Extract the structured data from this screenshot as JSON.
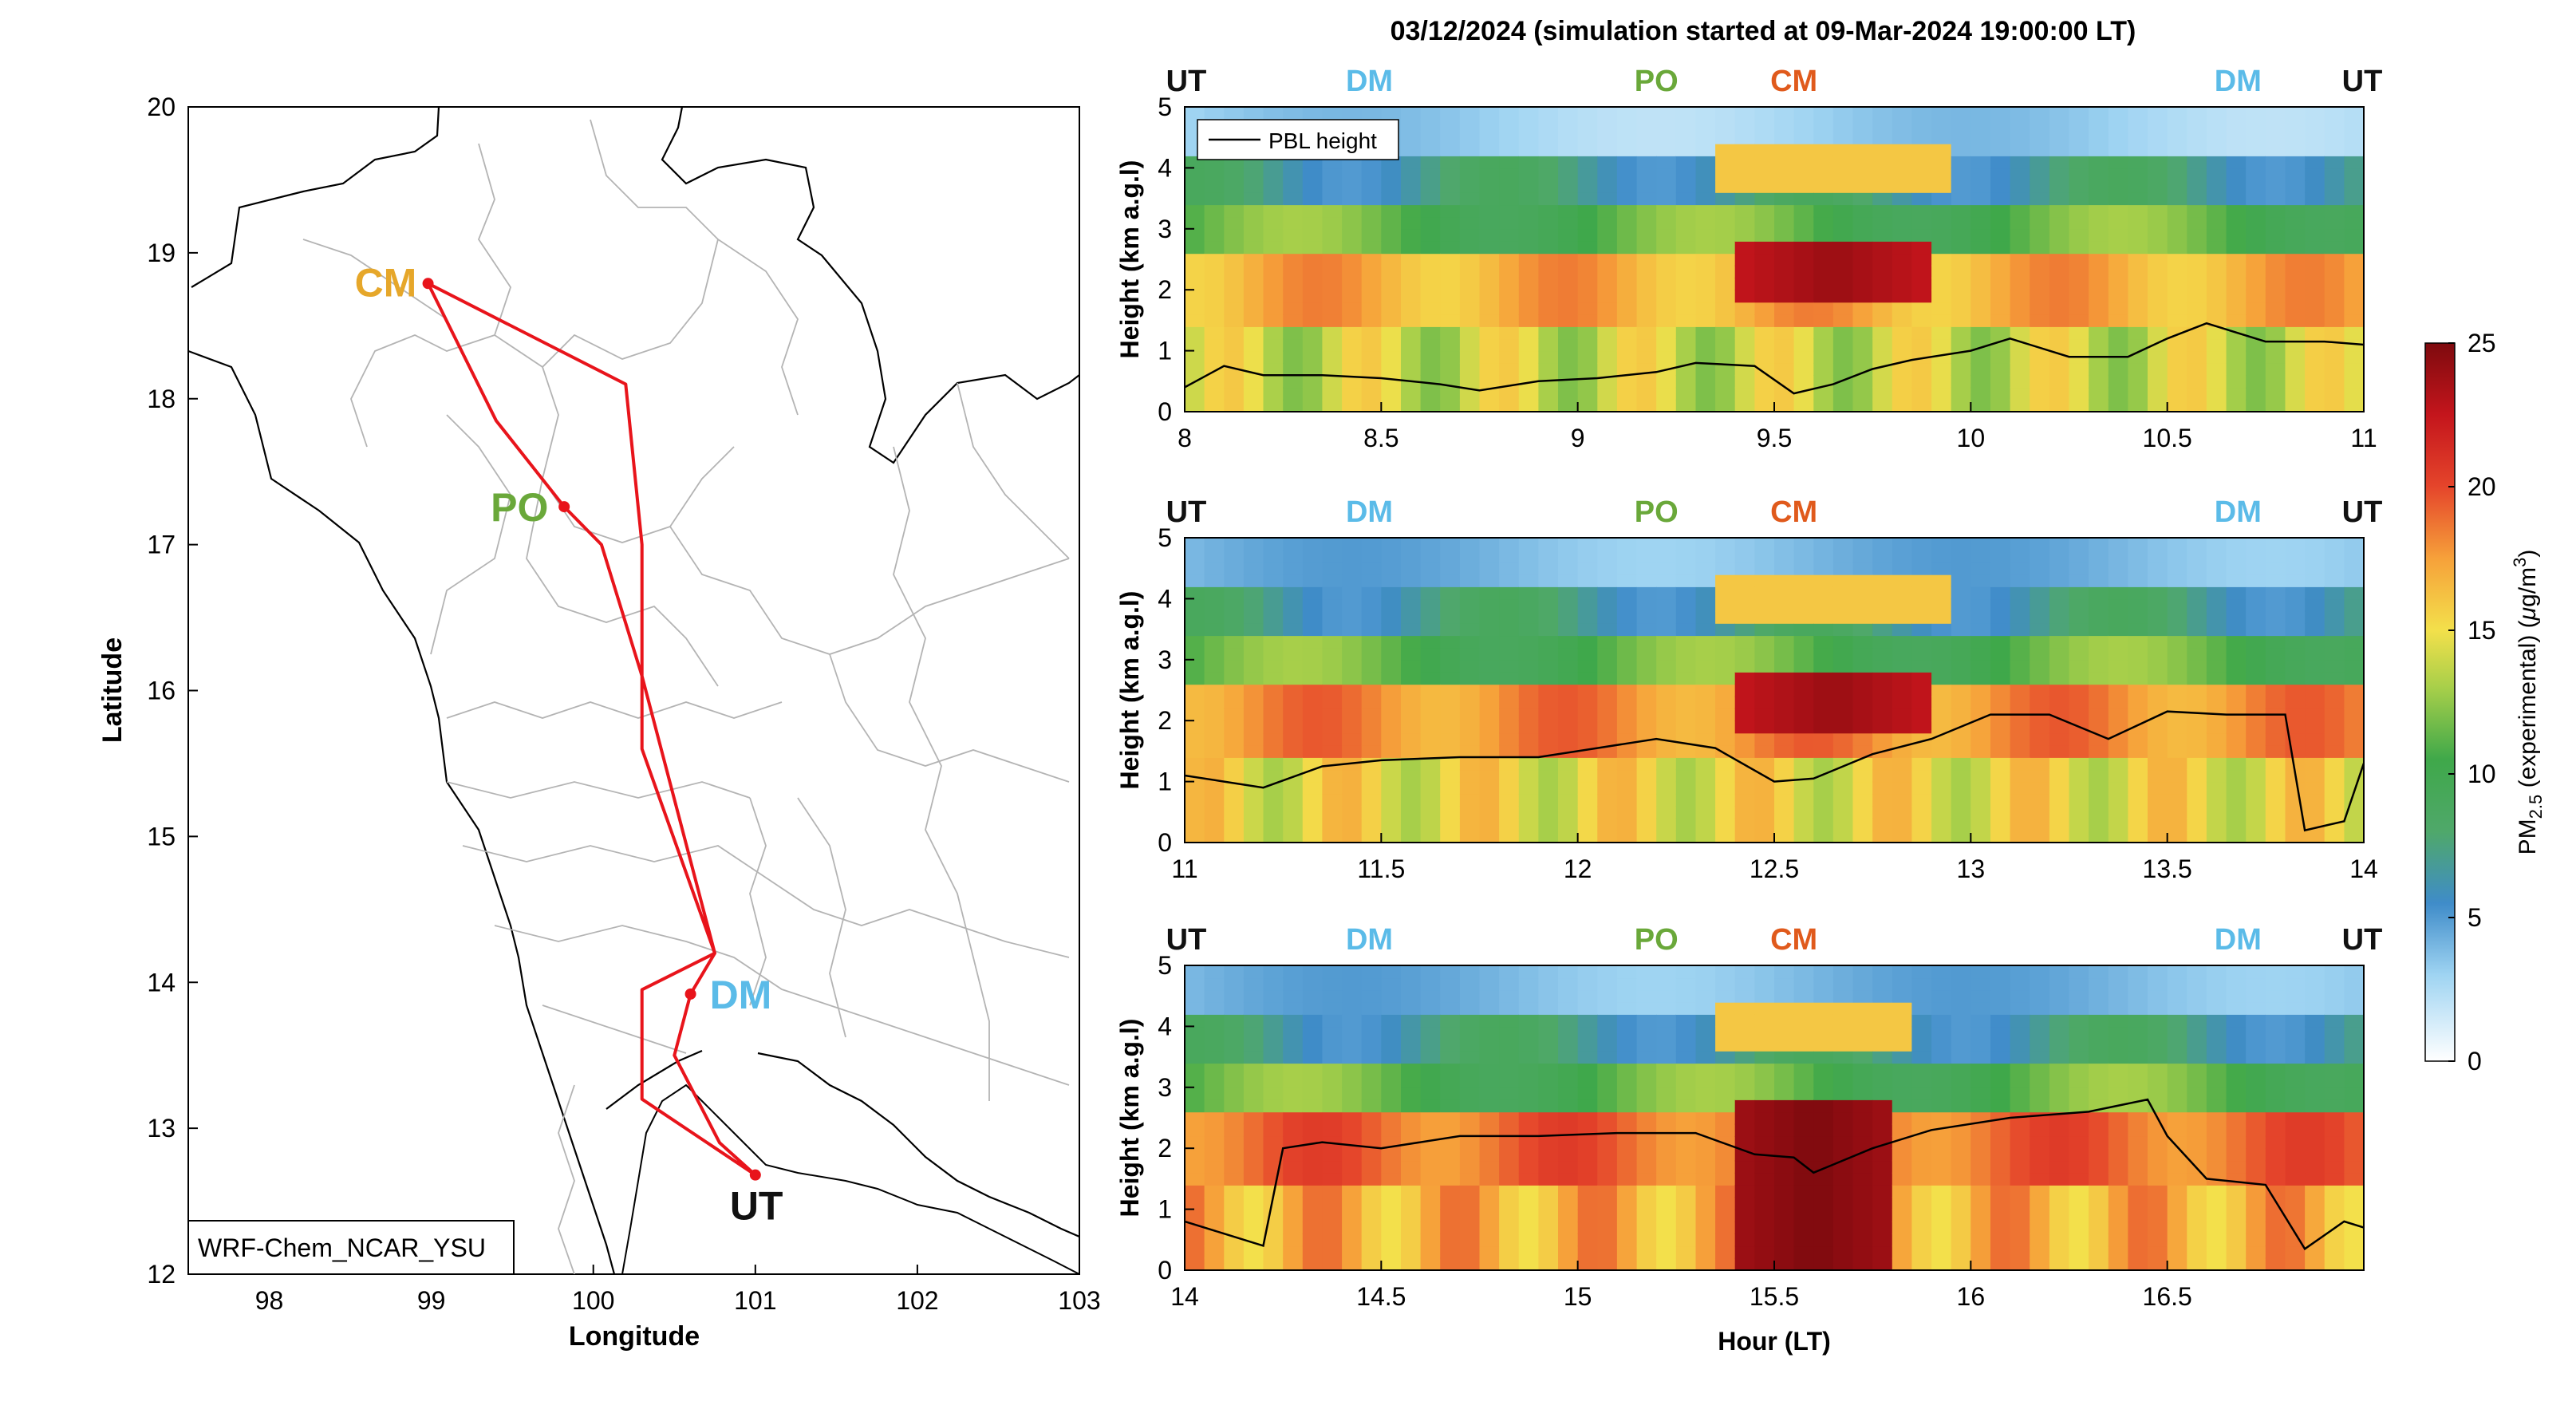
{
  "figure": {
    "title": "03/12/2024 (simulation started at 09-Mar-2024 19:00:00 LT)"
  },
  "map": {
    "xlabel": "Longitude",
    "ylabel": "Latitude",
    "xticks": [
      98,
      99,
      100,
      101,
      102,
      103
    ],
    "yticks": [
      12,
      13,
      14,
      15,
      16,
      17,
      18,
      19,
      20
    ],
    "xlim": [
      97.5,
      103
    ],
    "ylim": [
      12,
      20
    ],
    "model_label": "WRF-Chem_NCAR_YSU",
    "route_color": "#e8141b",
    "sites": [
      {
        "code": "CM",
        "lon": 98.98,
        "lat": 18.79,
        "color": "#e6a72a"
      },
      {
        "code": "PO",
        "lon": 99.82,
        "lat": 17.26,
        "color": "#6aa83a"
      },
      {
        "code": "DM",
        "lon": 100.6,
        "lat": 13.92,
        "color": "#5bbbe8"
      },
      {
        "code": "UT",
        "lon": 101.0,
        "lat": 12.68,
        "color": "#111111"
      }
    ]
  },
  "colorbar": {
    "label": "PM",
    "label_sub": "2.5",
    "label_rest": " (experimental) (",
    "label_mu": "μ",
    "label_unit": "g/m",
    "label_sup": "3",
    "label_end": ")",
    "ticks": [
      0,
      5,
      10,
      15,
      20,
      25
    ],
    "colormap": "jet-like white→blue→green→yellow→red→dark red"
  },
  "panels": [
    {
      "ylabel": "Height (km a.g.l)",
      "xlabel": "",
      "legend": "PBL height",
      "site_labels": [
        {
          "code": "UT",
          "hour": 8.0,
          "color": "#111111"
        },
        {
          "code": "DM",
          "hour": 8.47,
          "color": "#5bbbe8"
        },
        {
          "code": "PO",
          "hour": 9.2,
          "color": "#6aa83a"
        },
        {
          "code": "CM",
          "hour": 9.55,
          "color": "#e05a1c"
        },
        {
          "code": "DM",
          "hour": 10.68,
          "color": "#5bbbe8"
        },
        {
          "code": "UT",
          "hour": 11.0,
          "color": "#111111"
        }
      ]
    },
    {
      "ylabel": "Height (km a.g.l)",
      "xlabel": "",
      "legend": "",
      "site_labels": [
        {
          "code": "UT",
          "hour": 11.0,
          "color": "#111111"
        },
        {
          "code": "DM",
          "hour": 11.47,
          "color": "#5bbbe8"
        },
        {
          "code": "PO",
          "hour": 12.2,
          "color": "#6aa83a"
        },
        {
          "code": "CM",
          "hour": 12.55,
          "color": "#e05a1c"
        },
        {
          "code": "DM",
          "hour": 13.68,
          "color": "#5bbbe8"
        },
        {
          "code": "UT",
          "hour": 14.0,
          "color": "#111111"
        }
      ]
    },
    {
      "ylabel": "Height (km a.g.l)",
      "xlabel": "Hour (LT)",
      "legend": "",
      "site_labels": [
        {
          "code": "UT",
          "hour": 14.0,
          "color": "#111111"
        },
        {
          "code": "DM",
          "hour": 14.47,
          "color": "#5bbbe8"
        },
        {
          "code": "PO",
          "hour": 15.2,
          "color": "#6aa83a"
        },
        {
          "code": "CM",
          "hour": 15.55,
          "color": "#e05a1c"
        },
        {
          "code": "DM",
          "hour": 16.68,
          "color": "#5bbbe8"
        },
        {
          "code": "UT",
          "hour": 17.0,
          "color": "#111111"
        }
      ]
    }
  ],
  "chart_data": [
    {
      "type": "line",
      "title": "",
      "xlabel": "Longitude",
      "ylabel": "Latitude",
      "xlim": [
        97.5,
        103
      ],
      "ylim": [
        12,
        20
      ],
      "series": [
        {
          "name": "",
          "points": [
            [
              101.0,
              12.68
            ],
            [
              100.78,
              12.9
            ],
            [
              100.5,
              13.5
            ],
            [
              100.6,
              13.92
            ],
            [
              100.75,
              14.2
            ],
            [
              100.3,
              16.1
            ],
            [
              100.05,
              17.0
            ],
            [
              99.82,
              17.26
            ],
            [
              99.4,
              17.85
            ],
            [
              98.98,
              18.79
            ],
            [
              100.2,
              18.1
            ],
            [
              100.3,
              17.0
            ],
            [
              100.3,
              15.6
            ],
            [
              100.75,
              14.2
            ],
            [
              100.3,
              13.95
            ],
            [
              100.3,
              13.2
            ],
            [
              101.0,
              12.68
            ]
          ]
        }
      ]
    },
    {
      "type": "heatmap",
      "xlabel": "",
      "ylabel": "Height (km a.g.l)",
      "xlim": [
        8,
        11
      ],
      "ylim": [
        0,
        5
      ],
      "xticks": [
        8,
        8.5,
        9,
        9.5,
        10,
        10.5,
        11
      ],
      "yticks": [
        0,
        1,
        2,
        3,
        4,
        5
      ],
      "zlim": [
        0,
        25
      ],
      "series": [
        {
          "name": "PBL height",
          "x": [
            8.0,
            8.1,
            8.2,
            8.35,
            8.5,
            8.65,
            8.75,
            8.9,
            9.05,
            9.2,
            9.3,
            9.45,
            9.55,
            9.65,
            9.75,
            9.85,
            10.0,
            10.1,
            10.25,
            10.4,
            10.5,
            10.6,
            10.75,
            10.9,
            11.0
          ],
          "y": [
            0.4,
            0.75,
            0.6,
            0.6,
            0.55,
            0.45,
            0.35,
            0.5,
            0.55,
            0.65,
            0.8,
            0.75,
            0.3,
            0.45,
            0.7,
            0.85,
            1.0,
            1.2,
            0.9,
            0.9,
            1.2,
            1.45,
            1.15,
            1.15,
            1.1
          ]
        }
      ],
      "cells_model": "PM2.5 field: 10–18 µg/m³ below 2 km, hotspot ~22–25 near 9.4–9.9 h at 1.8–2.8 km, ~3–8 above 3.5 km"
    },
    {
      "type": "heatmap",
      "xlabel": "",
      "ylabel": "Height (km a.g.l)",
      "xlim": [
        11,
        14
      ],
      "ylim": [
        0,
        5
      ],
      "xticks": [
        11,
        11.5,
        12,
        12.5,
        13,
        13.5,
        14
      ],
      "yticks": [
        0,
        1,
        2,
        3,
        4,
        5
      ],
      "zlim": [
        0,
        25
      ],
      "series": [
        {
          "name": "PBL height",
          "x": [
            11.0,
            11.1,
            11.2,
            11.35,
            11.5,
            11.7,
            11.9,
            12.05,
            12.2,
            12.35,
            12.5,
            12.6,
            12.75,
            12.9,
            13.05,
            13.2,
            13.35,
            13.5,
            13.65,
            13.8,
            13.85,
            13.95,
            14.0
          ],
          "y": [
            1.1,
            1.0,
            0.9,
            1.25,
            1.35,
            1.4,
            1.4,
            1.55,
            1.7,
            1.55,
            1.0,
            1.05,
            1.45,
            1.7,
            2.1,
            2.1,
            1.7,
            2.15,
            2.1,
            2.1,
            0.2,
            0.35,
            1.3
          ]
        }
      ],
      "cells_model": "PM2.5 field: 12–18 µg/m³ below 2 km, hotspot ~22–25 near 12.4–12.9 h at 1.8–2.8 km"
    },
    {
      "type": "heatmap",
      "xlabel": "Hour (LT)",
      "ylabel": "Height (km a.g.l)",
      "xlim": [
        14,
        17
      ],
      "ylim": [
        0,
        5
      ],
      "xticks": [
        14,
        14.5,
        15,
        15.5,
        16,
        16.5
      ],
      "yticks": [
        0,
        1,
        2,
        3,
        4,
        5
      ],
      "zlim": [
        0,
        25
      ],
      "series": [
        {
          "name": "PBL height",
          "x": [
            14.0,
            14.1,
            14.2,
            14.25,
            14.35,
            14.5,
            14.7,
            14.9,
            15.1,
            15.3,
            15.45,
            15.55,
            15.6,
            15.75,
            15.9,
            16.1,
            16.3,
            16.45,
            16.5,
            16.6,
            16.75,
            16.85,
            16.95,
            17.0
          ],
          "y": [
            0.8,
            0.6,
            0.4,
            2.0,
            2.1,
            2.0,
            2.2,
            2.2,
            2.25,
            2.25,
            1.9,
            1.85,
            1.6,
            2.0,
            2.3,
            2.5,
            2.6,
            2.8,
            2.2,
            1.5,
            1.4,
            0.35,
            0.8,
            0.7
          ]
        }
      ],
      "cells_model": "PM2.5 field: 15–20 µg/m³ below 2.5 km, hotspot ~25 near 15.4–15.8 h from 0–2.8 km"
    }
  ]
}
